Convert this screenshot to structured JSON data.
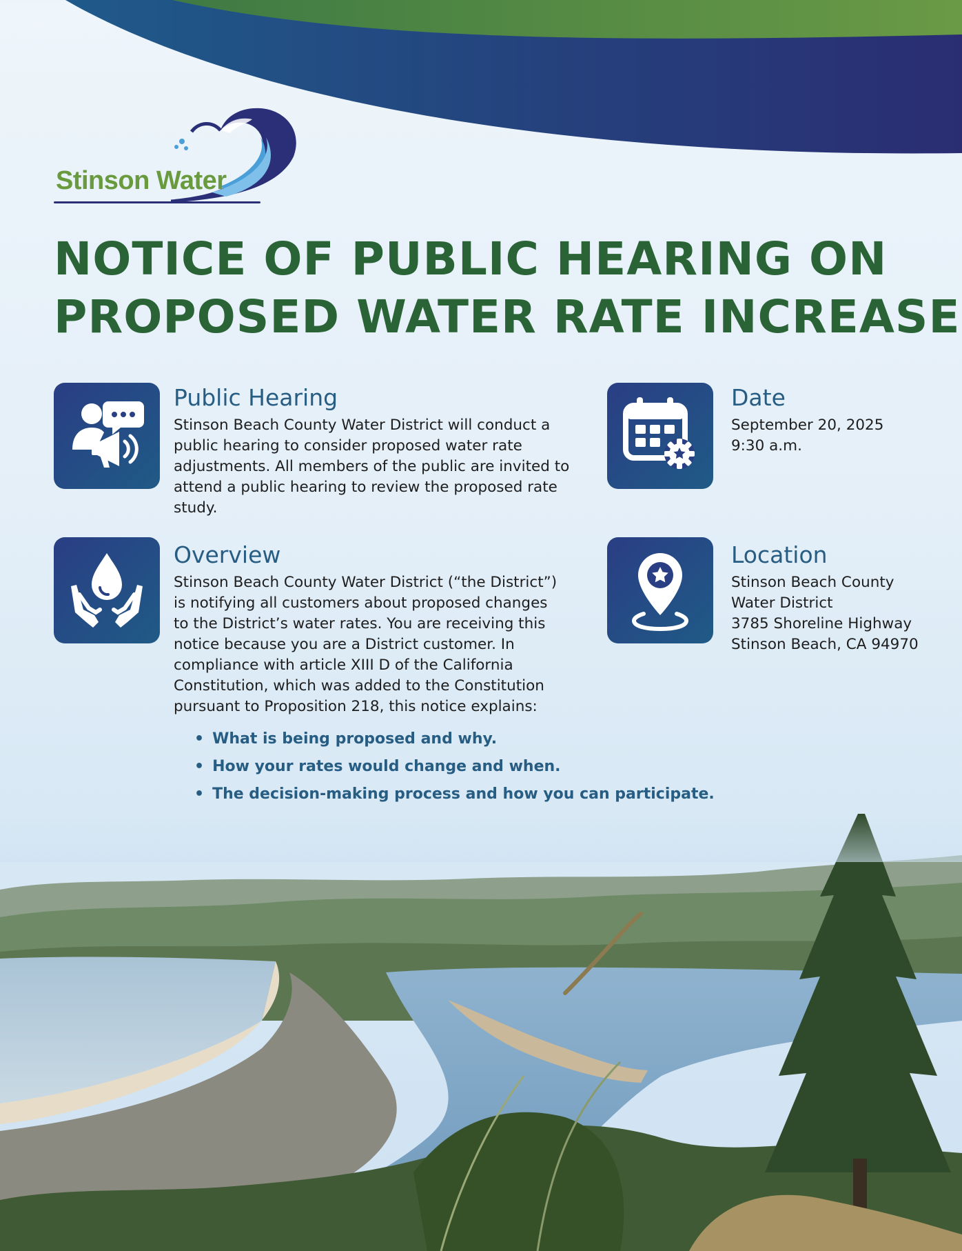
{
  "logo": {
    "text": "Stinson Water"
  },
  "title": {
    "line1": "NOTICE OF PUBLIC HEARING ON",
    "line2": "PROPOSED WATER RATE INCREASES"
  },
  "sections": {
    "public_hearing": {
      "icon": "people-megaphone-icon",
      "heading": "Public Hearing",
      "body": "Stinson Beach County Water District will conduct a public hearing to consider proposed water rate adjustments. All members of the public are invited to attend a public hearing to review the proposed rate study."
    },
    "date": {
      "icon": "calendar-gear-icon",
      "heading": "Date",
      "line1": "September 20, 2025",
      "line2": "9:30 a.m."
    },
    "overview": {
      "icon": "water-drop-hands-icon",
      "heading": "Overview",
      "body": "Stinson Beach County Water District (“the District”) is notifying all customers about proposed changes to the District’s water rates. You are receiving this notice because you are a District customer. In compliance with article XIII D of the California Constitution, which was added to the Constitution pursuant to Proposition 218, this notice explains:",
      "bullets": [
        "What is being proposed and why.",
        "How your rates would change and when.",
        "The decision-making process and how you can participate."
      ]
    },
    "location": {
      "icon": "map-pin-star-icon",
      "heading": "Location",
      "lines": [
        "Stinson Beach County",
        "Water District",
        "3785 Shoreline Highway",
        "Stinson Beach, CA 94970"
      ]
    }
  },
  "colors": {
    "title_green": "#2a6436",
    "heading_blue": "#275d83",
    "icon_bg": "#2a3e84",
    "wave_navy": "#2a2d72",
    "wave_green": "#5f9241",
    "logo_green": "#6a9a3e"
  }
}
